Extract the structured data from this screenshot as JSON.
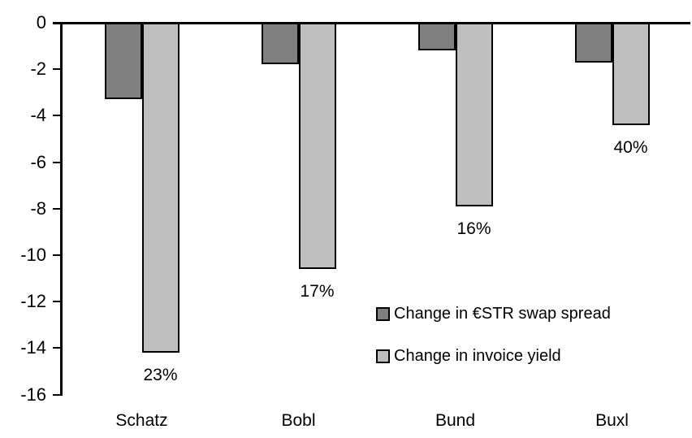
{
  "chart_data": {
    "type": "bar",
    "title": "",
    "orientation": "vertical-negative",
    "categories": [
      "Schatz",
      "Bobl",
      "Bund",
      "Buxl"
    ],
    "series": [
      {
        "name": "Change in €STR swap spread",
        "color": "#808080",
        "values": [
          -3.3,
          -1.8,
          -1.2,
          -1.7
        ]
      },
      {
        "name": "Change in invoice yield",
        "color": "#bfbfbf",
        "values": [
          -14.2,
          -10.6,
          -7.9,
          -4.4
        ],
        "data_labels": [
          "23%",
          "17%",
          "16%",
          "40%"
        ]
      }
    ],
    "y_axis": {
      "min": -16,
      "max": 0,
      "tick_step": 2,
      "ticks": [
        0,
        -2,
        -4,
        -6,
        -8,
        -10,
        -12,
        -14,
        -16
      ],
      "tick_labels": [
        "0",
        "-2",
        "-4",
        "-6",
        "-8",
        "-10",
        "-12",
        "-14",
        "-16"
      ],
      "grid": false
    },
    "legend": {
      "position": "inside-center-right"
    },
    "colors": {
      "axis": "#000000",
      "background": "#ffffff"
    }
  }
}
